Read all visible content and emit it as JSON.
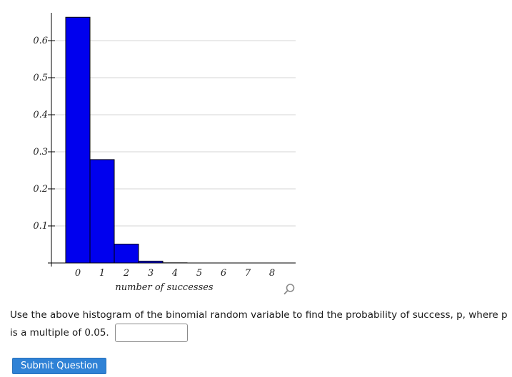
{
  "chart_data": {
    "type": "bar",
    "title": "",
    "xlabel": "number of successes",
    "ylabel": "",
    "categories": [
      "0",
      "1",
      "2",
      "3",
      "4",
      "5",
      "6",
      "7",
      "8"
    ],
    "values": [
      0.663,
      0.279,
      0.051,
      0.005,
      0.0004,
      0.0,
      0.0,
      0.0,
      0.0
    ],
    "y_ticks": [
      "0.1",
      "0.2",
      "0.3",
      "0.4",
      "0.5",
      "0.6"
    ],
    "ylim": [
      0,
      0.66
    ],
    "grid": true,
    "bar_color": "#0000ee",
    "bar_edge_color": "#000000"
  },
  "question": {
    "text": "Use the above histogram of the binomial random variable to find the probability of success, p, where p is a multiple of 0.05.",
    "answer_value": ""
  },
  "submit_button": {
    "label": "Submit Question"
  },
  "icons": {
    "zoom": "magnifier-icon"
  }
}
